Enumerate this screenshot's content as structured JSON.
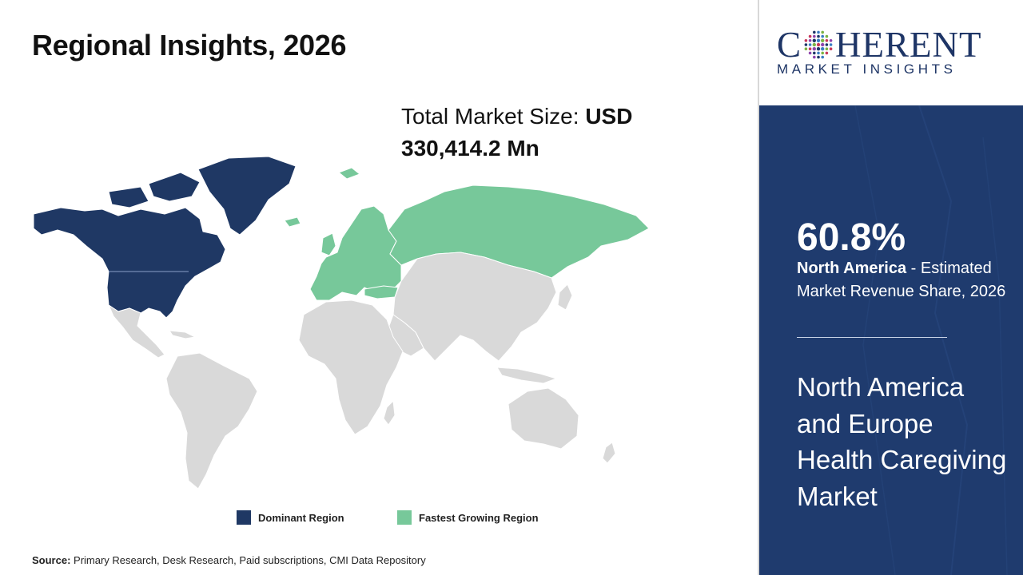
{
  "title": "Regional Insights, 2026",
  "market_size": {
    "label": "Total Market Size: ",
    "value": "USD 330,414.2 Mn"
  },
  "legend": {
    "dominant": {
      "label": "Dominant Region",
      "color": "#1f3864"
    },
    "fastest": {
      "label": "Fastest Growing Region",
      "color": "#77c89a"
    }
  },
  "map_colors": {
    "other": "#d9d9d9",
    "border": "#ffffff"
  },
  "source": {
    "label": "Source:",
    "text": " Primary Research, Desk Research, Paid subscriptions, CMI Data Repository"
  },
  "logo": {
    "main_left": "C",
    "main_right": "HERENT",
    "sub": "MARKET INSIGHTS"
  },
  "panel": {
    "stat": "60.8%",
    "region": "North America",
    "stat_desc": " - Estimated Market Revenue Share, 2026",
    "headline": "North America and Europe Health Caregiving Market"
  }
}
